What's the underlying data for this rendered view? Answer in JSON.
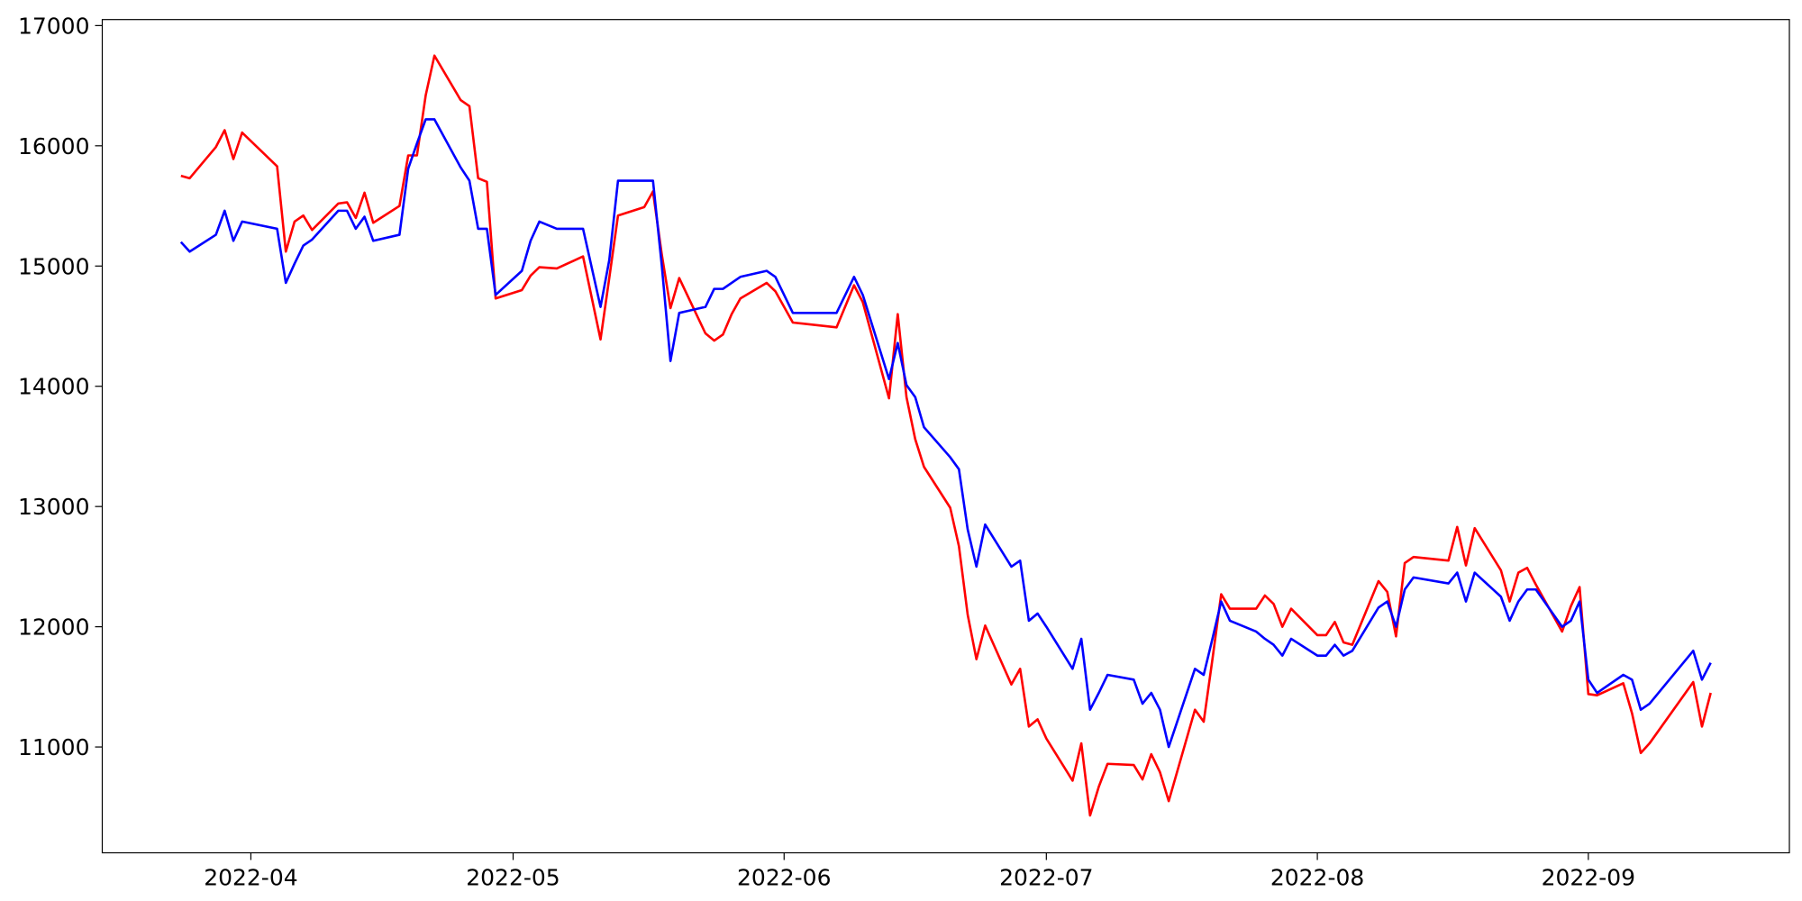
{
  "chart_data": {
    "type": "line",
    "x": [
      "2022-03-24",
      "2022-03-25",
      "2022-03-28",
      "2022-03-29",
      "2022-03-30",
      "2022-03-31",
      "2022-04-04",
      "2022-04-05",
      "2022-04-06",
      "2022-04-07",
      "2022-04-08",
      "2022-04-11",
      "2022-04-12",
      "2022-04-13",
      "2022-04-14",
      "2022-04-15",
      "2022-04-18",
      "2022-04-19",
      "2022-04-20",
      "2022-04-21",
      "2022-04-22",
      "2022-04-25",
      "2022-04-26",
      "2022-04-27",
      "2022-04-28",
      "2022-04-29",
      "2022-05-02",
      "2022-05-03",
      "2022-05-04",
      "2022-05-06",
      "2022-05-09",
      "2022-05-11",
      "2022-05-12",
      "2022-05-13",
      "2022-05-16",
      "2022-05-17",
      "2022-05-18",
      "2022-05-19",
      "2022-05-20",
      "2022-05-23",
      "2022-05-24",
      "2022-05-25",
      "2022-05-26",
      "2022-05-27",
      "2022-05-30",
      "2022-05-31",
      "2022-06-02",
      "2022-06-07",
      "2022-06-09",
      "2022-06-10",
      "2022-06-13",
      "2022-06-14",
      "2022-06-15",
      "2022-06-16",
      "2022-06-17",
      "2022-06-20",
      "2022-06-21",
      "2022-06-22",
      "2022-06-23",
      "2022-06-24",
      "2022-06-27",
      "2022-06-28",
      "2022-06-29",
      "2022-06-30",
      "2022-07-01",
      "2022-07-04",
      "2022-07-05",
      "2022-07-06",
      "2022-07-07",
      "2022-07-08",
      "2022-07-11",
      "2022-07-12",
      "2022-07-13",
      "2022-07-14",
      "2022-07-15",
      "2022-07-18",
      "2022-07-19",
      "2022-07-20",
      "2022-07-21",
      "2022-07-22",
      "2022-07-25",
      "2022-07-26",
      "2022-07-27",
      "2022-07-28",
      "2022-07-29",
      "2022-08-01",
      "2022-08-02",
      "2022-08-03",
      "2022-08-04",
      "2022-08-05",
      "2022-08-08",
      "2022-08-09",
      "2022-08-10",
      "2022-08-11",
      "2022-08-12",
      "2022-08-16",
      "2022-08-17",
      "2022-08-18",
      "2022-08-19",
      "2022-08-22",
      "2022-08-23",
      "2022-08-24",
      "2022-08-25",
      "2022-08-26",
      "2022-08-29",
      "2022-08-30",
      "2022-08-31",
      "2022-09-01",
      "2022-09-02",
      "2022-09-05",
      "2022-09-06",
      "2022-09-07",
      "2022-09-08",
      "2022-09-13",
      "2022-09-14",
      "2022-09-15"
    ],
    "series": [
      {
        "color": "#ff0000",
        "values": [
          15750,
          15730,
          15990,
          16130,
          15890,
          16110,
          15830,
          15120,
          15370,
          15420,
          15300,
          15520,
          15530,
          15400,
          15610,
          15360,
          15500,
          15920,
          15920,
          16420,
          16750,
          16380,
          16330,
          15730,
          15700,
          14730,
          14800,
          14920,
          14990,
          14980,
          15080,
          14390,
          14900,
          15420,
          15490,
          15620,
          15100,
          14650,
          14900,
          14440,
          14380,
          14430,
          14600,
          14730,
          14860,
          14790,
          14530,
          14490,
          14840,
          14700,
          13900,
          14600,
          13910,
          13560,
          13330,
          12990,
          12670,
          12100,
          11730,
          12010,
          11520,
          11650,
          11170,
          11230,
          11070,
          10720,
          11030,
          10430,
          10670,
          10860,
          10850,
          10730,
          10940,
          10790,
          10550,
          11310,
          11210,
          11730,
          12270,
          12150,
          12150,
          12260,
          12190,
          12000,
          12150,
          11930,
          11930,
          12040,
          11870,
          11850,
          12380,
          12290,
          11920,
          12530,
          12580,
          12550,
          12830,
          12510,
          12820,
          12470,
          12210,
          12450,
          12490,
          12350,
          11960,
          12170,
          12330,
          11440,
          11430,
          11530,
          11280,
          10950,
          11030,
          11540,
          11170,
          11450
        ]
      },
      {
        "color": "#0000ff",
        "values": [
          15200,
          15120,
          15260,
          15460,
          15210,
          15370,
          15310,
          14860,
          15020,
          15170,
          15220,
          15460,
          15460,
          15310,
          15410,
          15210,
          15260,
          15810,
          16020,
          16220,
          16220,
          15820,
          15710,
          15310,
          15310,
          14760,
          14960,
          15210,
          15370,
          15310,
          15310,
          14660,
          15050,
          15710,
          15710,
          15710,
          15010,
          14210,
          14610,
          14660,
          14810,
          14810,
          14860,
          14910,
          14960,
          14910,
          14610,
          14610,
          14910,
          14760,
          14060,
          14360,
          14010,
          13910,
          13660,
          13410,
          13310,
          12810,
          12500,
          12850,
          12500,
          12550,
          12050,
          12110,
          12000,
          11650,
          11900,
          11310,
          11450,
          11600,
          11560,
          11360,
          11450,
          11310,
          11000,
          11650,
          11600,
          11900,
          12210,
          12050,
          11960,
          11900,
          11850,
          11760,
          11900,
          11760,
          11760,
          11850,
          11760,
          11800,
          12160,
          12210,
          12000,
          12310,
          12410,
          12360,
          12450,
          12210,
          12450,
          12250,
          12050,
          12210,
          12310,
          12310,
          12000,
          12050,
          12210,
          11560,
          11450,
          11600,
          11560,
          11310,
          11360,
          11800,
          11560,
          11700
        ]
      }
    ],
    "xlim": [
      "2022-03-15",
      "2022-09-24"
    ],
    "xticks": [
      {
        "value": "2022-04-01",
        "label": "2022-04"
      },
      {
        "value": "2022-05-01",
        "label": "2022-05"
      },
      {
        "value": "2022-06-01",
        "label": "2022-06"
      },
      {
        "value": "2022-07-01",
        "label": "2022-07"
      },
      {
        "value": "2022-08-01",
        "label": "2022-08"
      },
      {
        "value": "2022-09-01",
        "label": "2022-09"
      }
    ],
    "ylim": [
      10120,
      17050
    ],
    "yticks": [
      11000,
      12000,
      13000,
      14000,
      15000,
      16000,
      17000
    ],
    "grid": false
  }
}
